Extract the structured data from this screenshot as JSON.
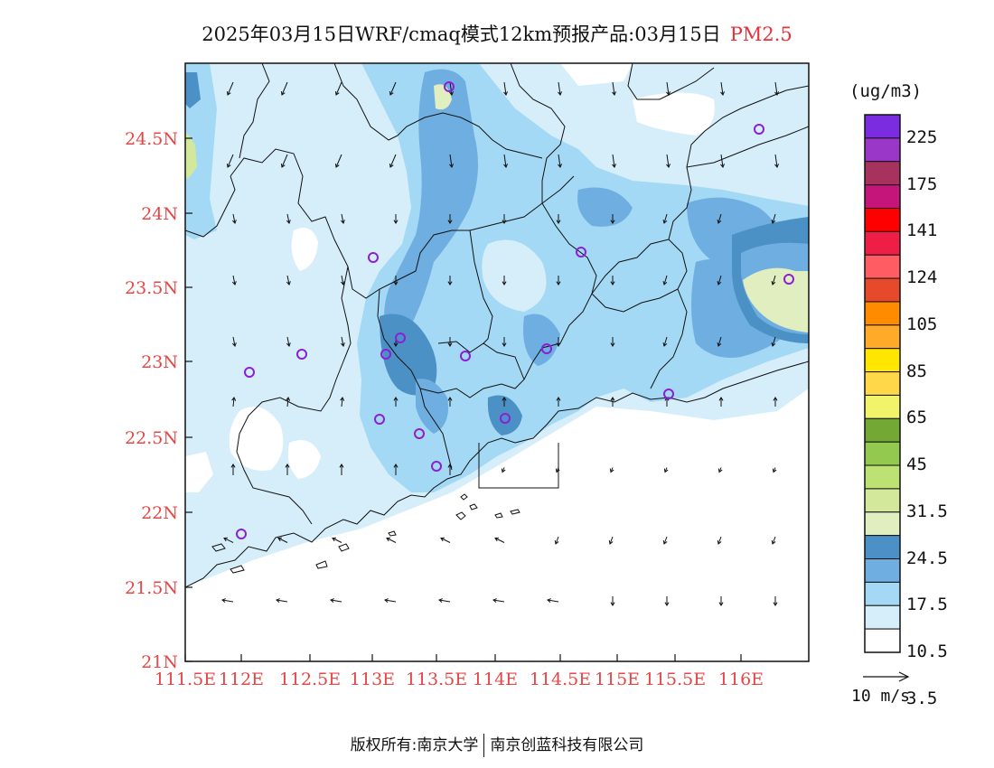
{
  "title": {
    "main": "2025年03月15日WRF/cmaq模式12km预报产品:03月15日",
    "pollutant": "PM2.5"
  },
  "axes": {
    "lat_ticks": [
      "24.5N",
      "24N",
      "23.5N",
      "23N",
      "22.5N",
      "22N",
      "21.5N",
      "21N"
    ],
    "lon_ticks": [
      "111.5E",
      "112E",
      "112.5E",
      "113E",
      "113.5E",
      "114E",
      "114.5E",
      "115E",
      "115.5E",
      "116E"
    ]
  },
  "colorbar": {
    "unit": "(ug/m3)",
    "colors": [
      "#7b2be0",
      "#9a36c8",
      "#a8325e",
      "#c5157a",
      "#ff0000",
      "#ee1e47",
      "#ff5c63",
      "#e64a2a",
      "#ff8c00",
      "#ffaa28",
      "#ffe600",
      "#ffd84a",
      "#f1f36a",
      "#74a834",
      "#93c94e",
      "#bde274",
      "#d3e89a",
      "#e1eebf",
      "#4b91c6",
      "#6faee0",
      "#a4d9f5",
      "#d6eefa",
      "#ffffff"
    ],
    "labels": [
      "225",
      "175",
      "141",
      "124",
      "105",
      "85",
      "65",
      "45",
      "31.5",
      "24.5",
      "17.5",
      "10.5",
      "3.5"
    ]
  },
  "wind_reference": "10 m/s",
  "footer": {
    "left": "版权所有:南京大学",
    "right": "南京创蓝科技有限公司"
  }
}
